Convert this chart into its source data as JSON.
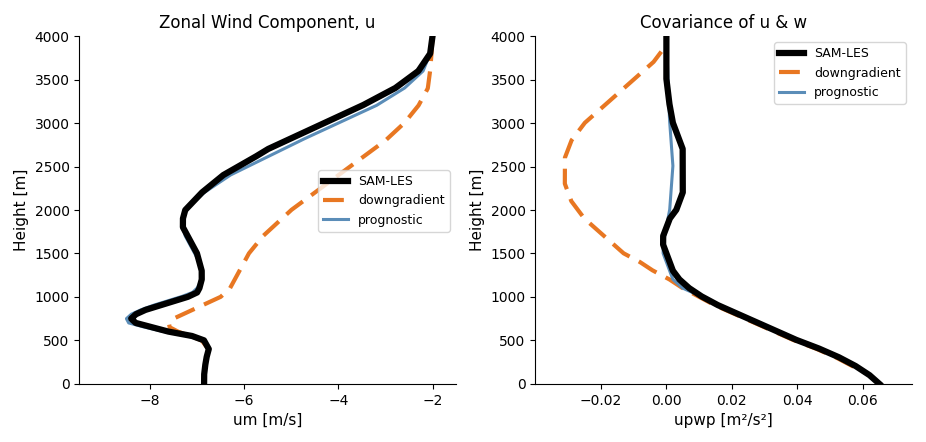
{
  "title_left": "Zonal Wind Component, u",
  "title_right": "Covariance of u & w",
  "xlabel_left": "um [m/s]",
  "xlabel_right": "upwp [m²/s²]",
  "ylabel": "Height [m]",
  "ylim": [
    0,
    4000
  ],
  "xlim_left": [
    -9.5,
    -1.5
  ],
  "xlim_right": [
    -0.04,
    0.075
  ],
  "xticks_left": [
    -8,
    -6,
    -4,
    -2
  ],
  "xticks_right": [
    -0.02,
    0,
    0.02,
    0.04,
    0.06
  ],
  "yticks": [
    0,
    500,
    1000,
    1500,
    2000,
    2500,
    3000,
    3500,
    4000
  ],
  "legend_labels": [
    "SAM-LES",
    "downgradient",
    "prognostic"
  ],
  "colors": {
    "sam_les": "#000000",
    "downgradient": "#E87722",
    "prognostic": "#5B8DB8"
  },
  "sam_les_lw": 4.5,
  "downgradient_lw": 3.0,
  "prognostic_lw": 2.2
}
